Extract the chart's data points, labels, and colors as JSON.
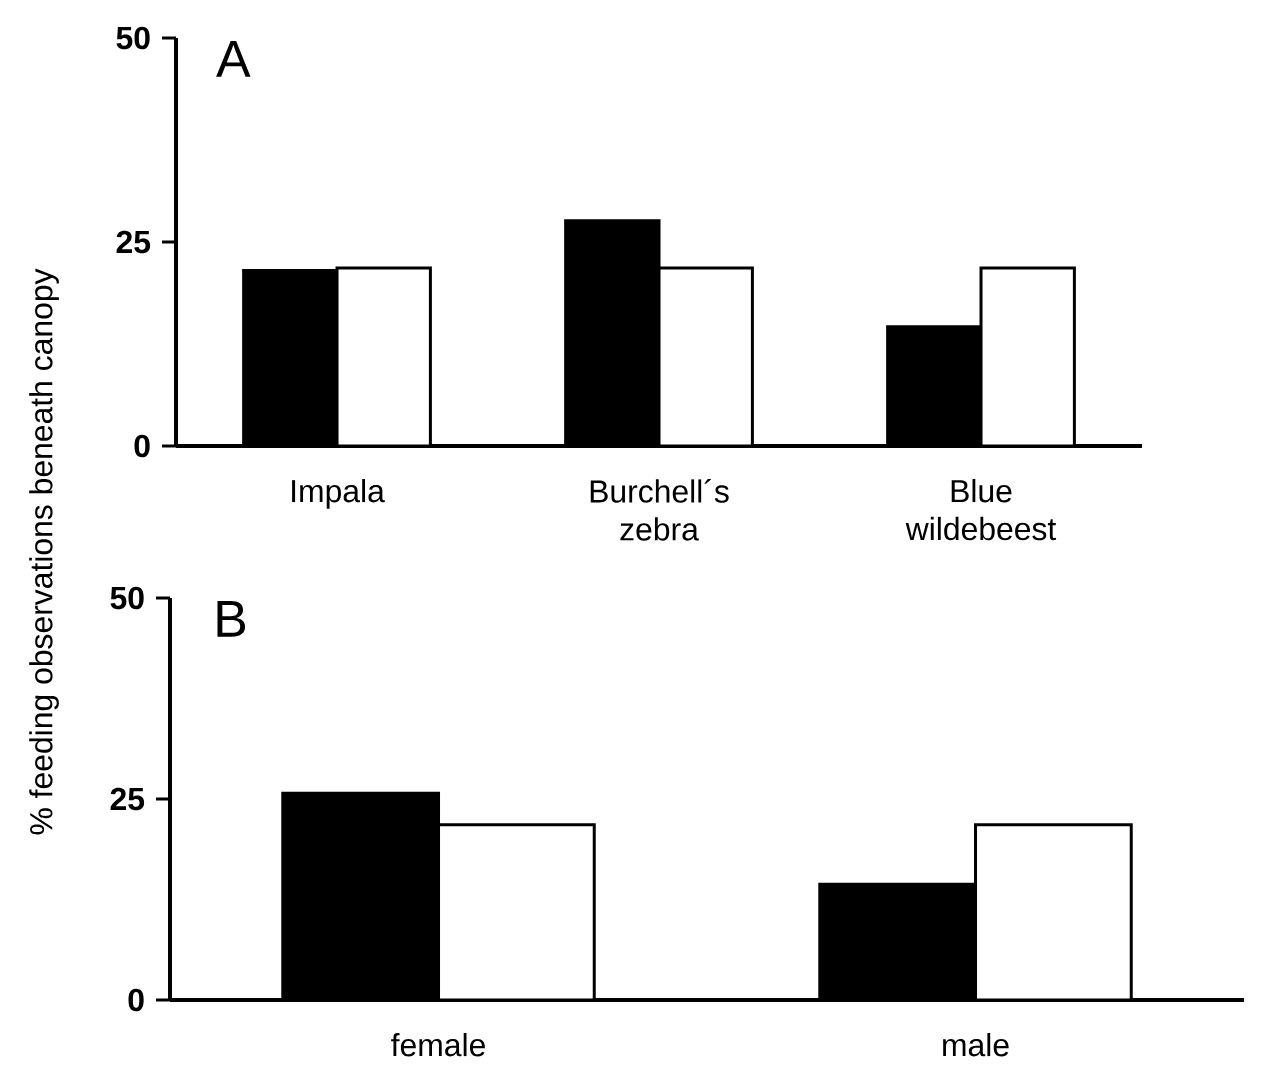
{
  "chart_data": [
    {
      "type": "bar",
      "title": "A",
      "ylabel": "% feeding observations beneath canopy",
      "categories": [
        "Impala",
        "Burchell´s zebra",
        "Blue wildebeest"
      ],
      "series": [
        {
          "color": "#000000",
          "values": [
            21.5,
            27.6,
            14.6
          ]
        },
        {
          "color": "#ffffff",
          "values": [
            21.8,
            21.8,
            21.8
          ]
        }
      ],
      "ylim": [
        0,
        50
      ],
      "yticks": [
        0,
        25,
        50
      ]
    },
    {
      "type": "bar",
      "title": "B",
      "categories": [
        "female",
        "male"
      ],
      "series": [
        {
          "color": "#000000",
          "values": [
            25.7,
            14.4
          ]
        },
        {
          "color": "#ffffff",
          "values": [
            21.8,
            21.8
          ]
        }
      ],
      "ylim": [
        0,
        50
      ],
      "yticks": [
        0,
        25,
        50
      ]
    }
  ]
}
